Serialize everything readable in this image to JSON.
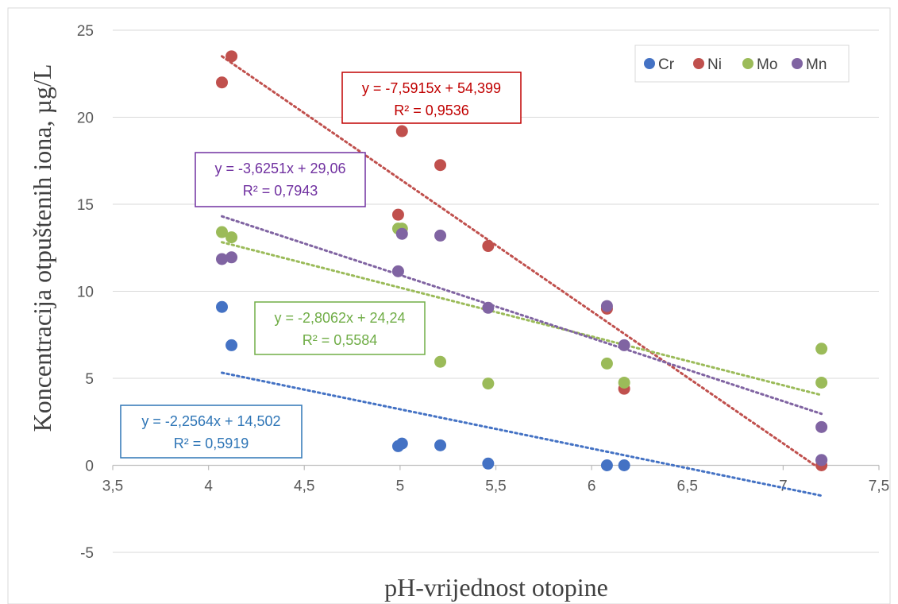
{
  "chart_data": {
    "type": "scatter",
    "title": "",
    "xlabel": "pH-vrijednost otopine",
    "ylabel": "Koncentracija otpuštenih iona, µg/L",
    "xlim": [
      3.5,
      7.5
    ],
    "ylim": [
      -5,
      25
    ],
    "x_ticks": [
      "3,5",
      "4",
      "4,5",
      "5",
      "5,5",
      "6",
      "6,5",
      "7",
      "7,5"
    ],
    "x_tick_values": [
      3.5,
      4,
      4.5,
      5,
      5.5,
      6,
      6.5,
      7,
      7.5
    ],
    "y_ticks": [
      "-5",
      "0",
      "5",
      "10",
      "15",
      "20",
      "25"
    ],
    "y_tick_values": [
      -5,
      0,
      5,
      10,
      15,
      20,
      25
    ],
    "grid": "horizontal",
    "legend_position": "top-right",
    "series": [
      {
        "name": "Cr",
        "color": "#4472C4",
        "x": [
          4.07,
          4.12,
          4.99,
          5.01,
          5.21,
          5.46,
          6.08,
          6.17,
          7.2
        ],
        "y": [
          9.1,
          6.9,
          1.1,
          1.25,
          1.15,
          0.1,
          0.0,
          0.0,
          0.3
        ],
        "trendline": {
          "slope": -2.2564,
          "intercept": 14.502,
          "x_range": [
            4.07,
            7.2
          ],
          "color": "#2E75B6",
          "equation": "y = -2,2564x + 14,502",
          "r2": "R² = 0,5919"
        }
      },
      {
        "name": "Ni",
        "color": "#C0504D",
        "x": [
          4.07,
          4.12,
          4.99,
          5.01,
          5.21,
          5.46,
          6.08,
          6.17,
          7.2
        ],
        "y": [
          22.0,
          23.5,
          14.4,
          19.2,
          17.25,
          12.6,
          9.0,
          4.4,
          0.0
        ],
        "trendline": {
          "slope": -7.5915,
          "intercept": 54.399,
          "x_range": [
            4.07,
            7.2
          ],
          "color": "#C00000",
          "equation": "y = -7,5915x + 54,399",
          "r2": "R² = 0,9536"
        }
      },
      {
        "name": "Mo",
        "color": "#9BBB59",
        "x": [
          4.07,
          4.12,
          4.99,
          5.01,
          5.21,
          5.46,
          6.08,
          6.17,
          7.2,
          7.2
        ],
        "y": [
          13.4,
          13.1,
          13.6,
          13.6,
          5.95,
          4.7,
          5.85,
          4.75,
          6.7,
          4.75
        ],
        "trendline": {
          "slope": -2.8062,
          "intercept": 24.24,
          "x_range": [
            4.07,
            7.2
          ],
          "color": "#70AD47",
          "equation": "y = -2,8062x + 24,24",
          "r2": "R² = 0,5584"
        }
      },
      {
        "name": "Mn",
        "color": "#8064A2",
        "x": [
          4.07,
          4.12,
          4.99,
          5.01,
          5.21,
          5.46,
          6.08,
          6.17,
          7.2,
          7.2
        ],
        "y": [
          11.85,
          11.95,
          11.15,
          13.3,
          13.2,
          9.05,
          9.15,
          6.9,
          2.2,
          0.3
        ],
        "trendline": {
          "slope": -3.6251,
          "intercept": 29.06,
          "x_range": [
            4.07,
            7.2
          ],
          "color": "#7030A0",
          "equation": "y = -3,6251x + 29,06",
          "r2": "R² = 0,7943"
        }
      }
    ]
  }
}
